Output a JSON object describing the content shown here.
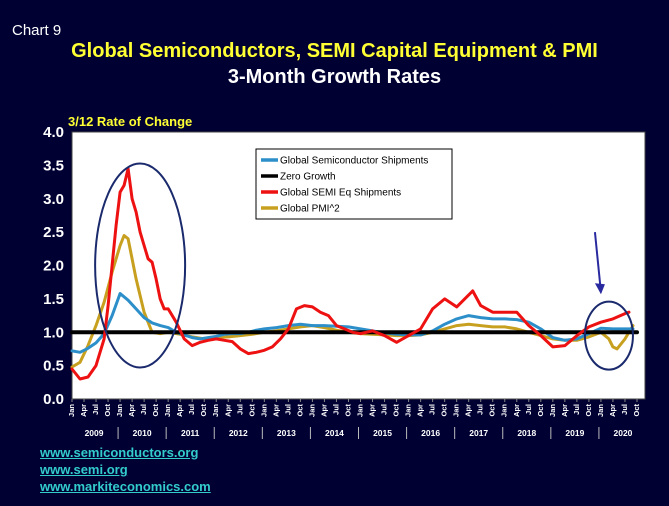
{
  "header": {
    "chart_number": "Chart 9",
    "title": "Global Semiconductors, SEMI Capital Equipment & PMI",
    "subtitle": "3-Month Growth Rates"
  },
  "links": [
    "www.semiconductors.org",
    "www.semi.org",
    "www.markiteconomics.com"
  ],
  "chart_data": {
    "type": "line",
    "title": "Global Semiconductors, SEMI Capital Equipment & PMI",
    "subtitle": "3-Month Growth Rates",
    "ylabel": "3/12 Rate of Change",
    "ylim": [
      0,
      4
    ],
    "yticks": [
      "0.0",
      "0.5",
      "1.0",
      "1.5",
      "2.0",
      "2.5",
      "3.0",
      "3.5",
      "4.0"
    ],
    "x_month_ticks": [
      "Jan",
      "Apr",
      "Jul",
      "Oct"
    ],
    "x_years": [
      "2009",
      "2010",
      "2011",
      "2012",
      "2013",
      "2014",
      "2015",
      "2016",
      "2017",
      "2018",
      "2019",
      "2020"
    ],
    "x_start": "2009-01",
    "legend": [
      "Global Semiconductor Shipments",
      "Zero Growth",
      "Global SEMI Eq Shipments",
      "Global PMI^2"
    ],
    "legend_position": "top-center",
    "colors": {
      "semiconductor": "#2c8fc9",
      "zero": "#000000",
      "semi_eq": "#ee1111",
      "pmi": "#c8a020",
      "annotation": "#1a2a6c"
    },
    "series": [
      {
        "name": "Global Semiconductor Shipments",
        "color": "#2c8fc9",
        "points": [
          [
            "2009-01",
            0.72
          ],
          [
            "2009-03",
            0.7
          ],
          [
            "2009-05",
            0.76
          ],
          [
            "2009-07",
            0.84
          ],
          [
            "2009-09",
            0.98
          ],
          [
            "2009-11",
            1.25
          ],
          [
            "2010-01",
            1.58
          ],
          [
            "2010-03",
            1.48
          ],
          [
            "2010-05",
            1.35
          ],
          [
            "2010-07",
            1.22
          ],
          [
            "2010-09",
            1.14
          ],
          [
            "2010-11",
            1.1
          ],
          [
            "2011-01",
            1.07
          ],
          [
            "2011-03",
            1.0
          ],
          [
            "2011-05",
            0.96
          ],
          [
            "2011-07",
            0.92
          ],
          [
            "2011-09",
            0.9
          ],
          [
            "2011-11",
            0.92
          ],
          [
            "2012-01",
            0.94
          ],
          [
            "2012-03",
            0.97
          ],
          [
            "2012-05",
            0.98
          ],
          [
            "2012-07",
            0.98
          ],
          [
            "2012-09",
            1.0
          ],
          [
            "2012-11",
            1.03
          ],
          [
            "2013-01",
            1.05
          ],
          [
            "2013-04",
            1.07
          ],
          [
            "2013-07",
            1.1
          ],
          [
            "2013-10",
            1.12
          ],
          [
            "2014-01",
            1.1
          ],
          [
            "2014-04",
            1.1
          ],
          [
            "2014-07",
            1.09
          ],
          [
            "2014-10",
            1.08
          ],
          [
            "2015-01",
            1.05
          ],
          [
            "2015-04",
            1.02
          ],
          [
            "2015-07",
            0.99
          ],
          [
            "2015-10",
            0.97
          ],
          [
            "2016-01",
            0.96
          ],
          [
            "2016-04",
            0.96
          ],
          [
            "2016-07",
            1.02
          ],
          [
            "2016-10",
            1.12
          ],
          [
            "2017-01",
            1.2
          ],
          [
            "2017-04",
            1.25
          ],
          [
            "2017-07",
            1.22
          ],
          [
            "2017-10",
            1.2
          ],
          [
            "2018-01",
            1.2
          ],
          [
            "2018-04",
            1.19
          ],
          [
            "2018-07",
            1.15
          ],
          [
            "2018-10",
            1.05
          ],
          [
            "2019-01",
            0.92
          ],
          [
            "2019-04",
            0.88
          ],
          [
            "2019-07",
            0.9
          ],
          [
            "2019-10",
            0.98
          ],
          [
            "2020-01",
            1.06
          ],
          [
            "2020-04",
            1.05
          ],
          [
            "2020-07",
            1.05
          ],
          [
            "2020-09",
            1.05
          ]
        ]
      },
      {
        "name": "Zero Growth",
        "color": "#000000",
        "points": [
          [
            "2009-01",
            1.0
          ],
          [
            "2020-10",
            1.0
          ]
        ]
      },
      {
        "name": "Global SEMI Eq Shipments",
        "color": "#ee1111",
        "points": [
          [
            "2009-01",
            0.45
          ],
          [
            "2009-03",
            0.3
          ],
          [
            "2009-05",
            0.33
          ],
          [
            "2009-07",
            0.5
          ],
          [
            "2009-09",
            0.9
          ],
          [
            "2009-10",
            1.4
          ],
          [
            "2009-11",
            2.0
          ],
          [
            "2009-12",
            2.6
          ],
          [
            "2010-01",
            3.1
          ],
          [
            "2010-02",
            3.2
          ],
          [
            "2010-03",
            3.45
          ],
          [
            "2010-04",
            3.0
          ],
          [
            "2010-05",
            2.8
          ],
          [
            "2010-06",
            2.5
          ],
          [
            "2010-07",
            2.3
          ],
          [
            "2010-08",
            2.1
          ],
          [
            "2010-09",
            2.05
          ],
          [
            "2010-10",
            1.8
          ],
          [
            "2010-11",
            1.5
          ],
          [
            "2010-12",
            1.35
          ],
          [
            "2011-01",
            1.35
          ],
          [
            "2011-03",
            1.15
          ],
          [
            "2011-05",
            0.9
          ],
          [
            "2011-07",
            0.8
          ],
          [
            "2011-09",
            0.85
          ],
          [
            "2011-11",
            0.88
          ],
          [
            "2012-01",
            0.9
          ],
          [
            "2012-03",
            0.88
          ],
          [
            "2012-05",
            0.86
          ],
          [
            "2012-07",
            0.75
          ],
          [
            "2012-09",
            0.68
          ],
          [
            "2012-11",
            0.7
          ],
          [
            "2013-01",
            0.73
          ],
          [
            "2013-03",
            0.78
          ],
          [
            "2013-05",
            0.9
          ],
          [
            "2013-07",
            1.05
          ],
          [
            "2013-09",
            1.35
          ],
          [
            "2013-11",
            1.4
          ],
          [
            "2014-01",
            1.38
          ],
          [
            "2014-03",
            1.3
          ],
          [
            "2014-05",
            1.25
          ],
          [
            "2014-07",
            1.1
          ],
          [
            "2014-09",
            1.05
          ],
          [
            "2014-11",
            1.0
          ],
          [
            "2015-01",
            0.98
          ],
          [
            "2015-04",
            1.02
          ],
          [
            "2015-07",
            0.95
          ],
          [
            "2015-10",
            0.85
          ],
          [
            "2016-01",
            0.95
          ],
          [
            "2016-04",
            1.05
          ],
          [
            "2016-07",
            1.35
          ],
          [
            "2016-10",
            1.5
          ],
          [
            "2017-01",
            1.38
          ],
          [
            "2017-03",
            1.5
          ],
          [
            "2017-05",
            1.62
          ],
          [
            "2017-07",
            1.4
          ],
          [
            "2017-10",
            1.3
          ],
          [
            "2018-01",
            1.3
          ],
          [
            "2018-04",
            1.3
          ],
          [
            "2018-07",
            1.1
          ],
          [
            "2018-10",
            0.95
          ],
          [
            "2019-01",
            0.78
          ],
          [
            "2019-04",
            0.8
          ],
          [
            "2019-07",
            0.95
          ],
          [
            "2019-10",
            1.08
          ],
          [
            "2020-01",
            1.15
          ],
          [
            "2020-04",
            1.2
          ],
          [
            "2020-07",
            1.28
          ],
          [
            "2020-08",
            1.3
          ]
        ]
      },
      {
        "name": "Global PMI^2",
        "color": "#c8a020",
        "points": [
          [
            "2009-01",
            0.48
          ],
          [
            "2009-03",
            0.55
          ],
          [
            "2009-05",
            0.8
          ],
          [
            "2009-07",
            1.1
          ],
          [
            "2009-09",
            1.45
          ],
          [
            "2009-11",
            1.9
          ],
          [
            "2010-01",
            2.3
          ],
          [
            "2010-02",
            2.45
          ],
          [
            "2010-03",
            2.4
          ],
          [
            "2010-05",
            1.8
          ],
          [
            "2010-07",
            1.3
          ],
          [
            "2010-09",
            1.0
          ],
          [
            "2010-11",
            0.98
          ],
          [
            "2011-01",
            1.0
          ],
          [
            "2011-04",
            0.97
          ],
          [
            "2011-07",
            0.93
          ],
          [
            "2011-10",
            0.9
          ],
          [
            "2012-01",
            0.92
          ],
          [
            "2012-04",
            0.93
          ],
          [
            "2012-07",
            0.95
          ],
          [
            "2012-10",
            0.97
          ],
          [
            "2013-01",
            1.0
          ],
          [
            "2013-04",
            1.02
          ],
          [
            "2013-07",
            1.05
          ],
          [
            "2013-10",
            1.08
          ],
          [
            "2014-01",
            1.1
          ],
          [
            "2014-04",
            1.07
          ],
          [
            "2014-07",
            1.03
          ],
          [
            "2014-10",
            1.0
          ],
          [
            "2015-01",
            0.98
          ],
          [
            "2015-04",
            0.97
          ],
          [
            "2015-07",
            0.96
          ],
          [
            "2015-10",
            0.95
          ],
          [
            "2016-01",
            0.95
          ],
          [
            "2016-04",
            0.96
          ],
          [
            "2016-07",
            1.0
          ],
          [
            "2016-10",
            1.05
          ],
          [
            "2017-01",
            1.1
          ],
          [
            "2017-04",
            1.12
          ],
          [
            "2017-07",
            1.1
          ],
          [
            "2017-10",
            1.08
          ],
          [
            "2018-01",
            1.08
          ],
          [
            "2018-04",
            1.05
          ],
          [
            "2018-07",
            1.0
          ],
          [
            "2018-10",
            0.95
          ],
          [
            "2019-01",
            0.9
          ],
          [
            "2019-04",
            0.88
          ],
          [
            "2019-07",
            0.88
          ],
          [
            "2019-10",
            0.93
          ],
          [
            "2020-01",
            1.0
          ],
          [
            "2020-03",
            0.9
          ],
          [
            "2020-04",
            0.78
          ],
          [
            "2020-05",
            0.75
          ],
          [
            "2020-07",
            0.9
          ],
          [
            "2020-09",
            1.1
          ]
        ]
      }
    ]
  }
}
